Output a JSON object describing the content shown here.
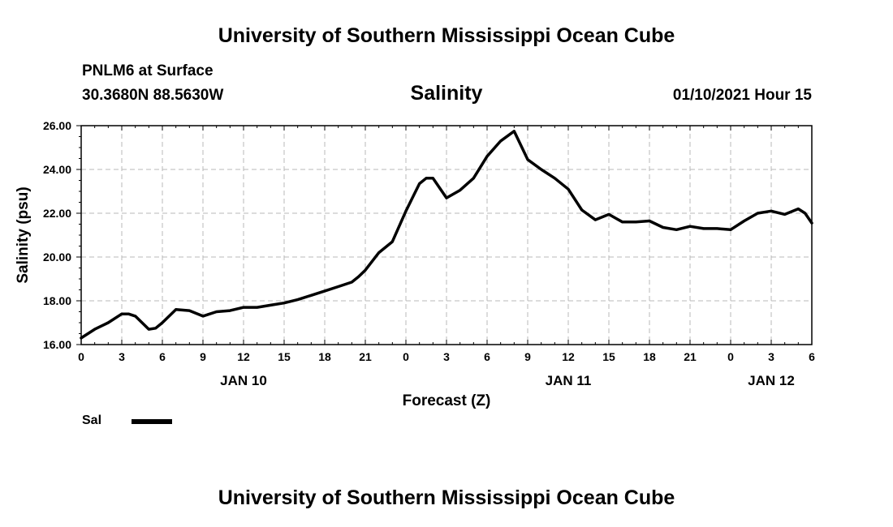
{
  "page": {
    "top_title": "University of Southern Mississippi Ocean Cube",
    "bottom_title": "University of Southern Mississippi Ocean Cube",
    "station": "PNLM6 at Surface",
    "coords": "30.3680N 88.5630W",
    "plot_title": "Salinity",
    "run_time": "01/10/2021 Hour 15"
  },
  "legend": {
    "label": "Sal",
    "color": "#000000"
  },
  "chart_data": {
    "type": "line",
    "title": "Salinity",
    "xlabel": "Forecast (Z)",
    "ylabel": "Salinity (psu)",
    "xlim": [
      0,
      54
    ],
    "ylim": [
      16,
      26
    ],
    "x_unit": "hours since 2021-01-10 00Z",
    "grid": true,
    "legend_position": "bottom-left",
    "yticks": [
      16,
      18,
      20,
      22,
      24,
      26
    ],
    "ytick_labels": [
      "16.00",
      "18.00",
      "20.00",
      "22.00",
      "24.00",
      "26.00"
    ],
    "xticks": [
      0,
      3,
      6,
      9,
      12,
      15,
      18,
      21,
      24,
      27,
      30,
      33,
      36,
      39,
      42,
      45,
      48,
      51,
      54
    ],
    "xtick_labels": [
      "0",
      "3",
      "6",
      "9",
      "12",
      "15",
      "18",
      "21",
      "0",
      "3",
      "6",
      "9",
      "12",
      "15",
      "18",
      "21",
      "0",
      "3",
      "6"
    ],
    "date_labels": [
      {
        "x": 12,
        "label": "JAN 10"
      },
      {
        "x": 36,
        "label": "JAN 11"
      },
      {
        "x": 51,
        "label": "JAN 12"
      }
    ],
    "series": [
      {
        "name": "Sal",
        "color": "#000000",
        "x": [
          0,
          1,
          2,
          3,
          3.5,
          4,
          5,
          5.5,
          6,
          7,
          8,
          9,
          10,
          11,
          12,
          13,
          14,
          15,
          16,
          17,
          18,
          19,
          20,
          20.5,
          21,
          22,
          23,
          24,
          25,
          25.5,
          26,
          27,
          28,
          29,
          30,
          31,
          32,
          33,
          34,
          35,
          36,
          37,
          38,
          39,
          40,
          41,
          42,
          43,
          44,
          45,
          46,
          47,
          48,
          49,
          50,
          51,
          52,
          53,
          53.5,
          54
        ],
        "values": [
          16.3,
          16.7,
          17.0,
          17.4,
          17.4,
          17.3,
          16.7,
          16.75,
          17.0,
          17.6,
          17.55,
          17.3,
          17.5,
          17.55,
          17.7,
          17.7,
          17.8,
          17.9,
          18.05,
          18.25,
          18.45,
          18.65,
          18.85,
          19.1,
          19.4,
          20.2,
          20.7,
          22.1,
          23.35,
          23.6,
          23.6,
          22.7,
          23.05,
          23.6,
          24.6,
          25.3,
          25.75,
          24.45,
          24.0,
          23.6,
          23.1,
          22.15,
          21.7,
          21.95,
          21.6,
          21.6,
          21.65,
          21.35,
          21.25,
          21.4,
          21.3,
          21.3,
          21.25,
          21.65,
          22.0,
          22.1,
          21.95,
          22.2,
          22.0,
          21.55
        ]
      }
    ]
  }
}
